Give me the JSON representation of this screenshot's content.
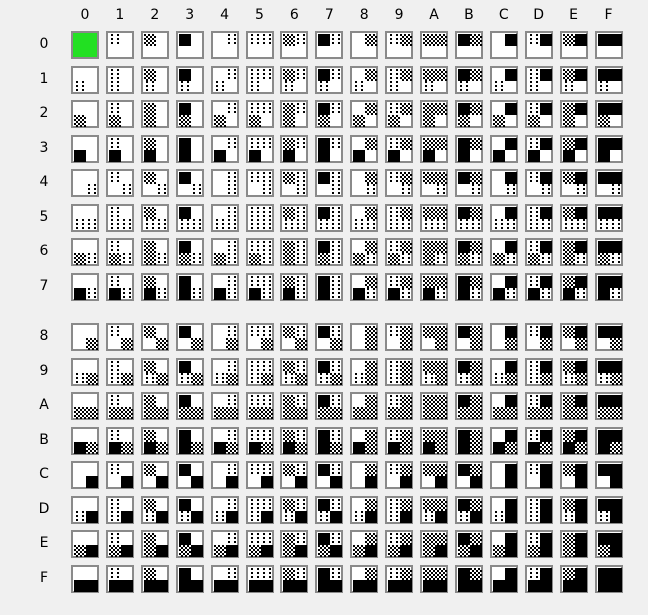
{
  "tile_grid": {
    "column_labels": [
      "0",
      "1",
      "2",
      "3",
      "4",
      "5",
      "6",
      "7",
      "8",
      "9",
      "A",
      "B",
      "C",
      "D",
      "E",
      "F"
    ],
    "row_labels": [
      "0",
      "1",
      "2",
      "3",
      "4",
      "5",
      "6",
      "7",
      "8",
      "9",
      "A",
      "B",
      "C",
      "D",
      "E",
      "F"
    ],
    "selected_tile": 0,
    "colors": {
      "selected": "#22e022",
      "ink": "#000000",
      "paper": "#ffffff",
      "border": "#8a8a8a"
    }
  }
}
